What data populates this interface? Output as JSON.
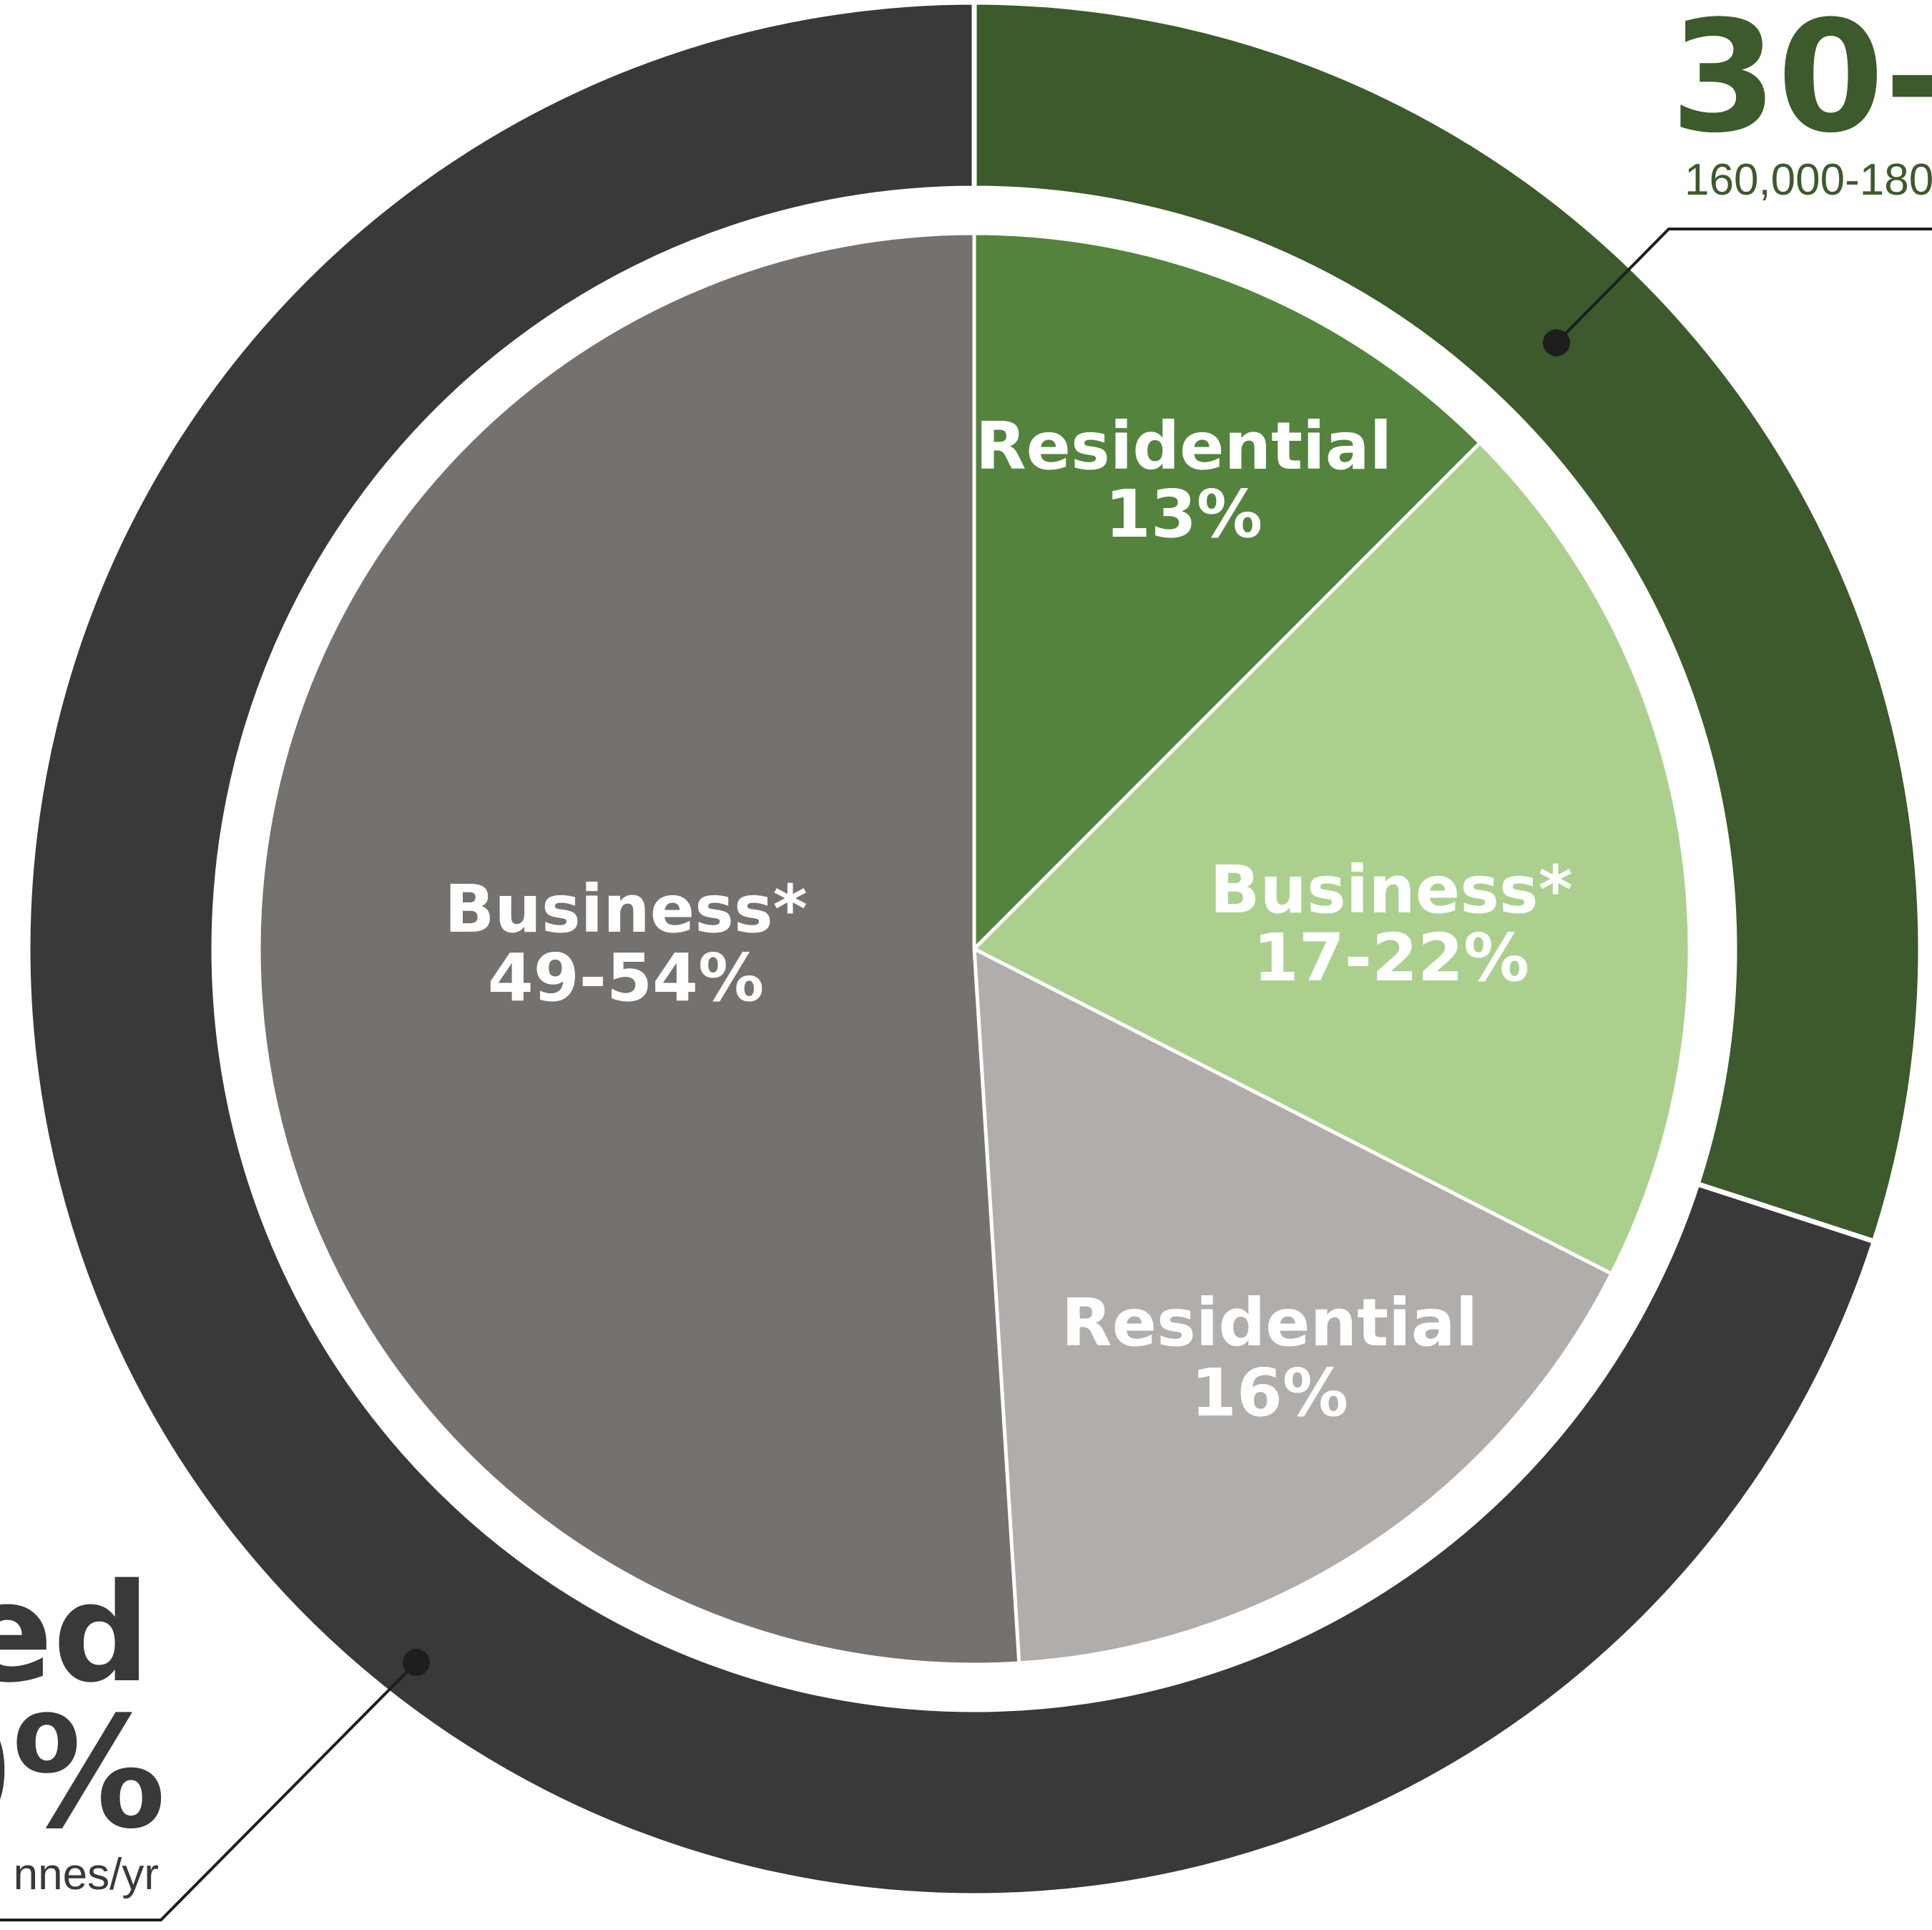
{
  "chart_data": {
    "type": "pie",
    "outer_ring": [
      {
        "value_pct": 30,
        "color": "#3c5a2b",
        "callout": {
          "big": "30-",
          "sub": "160,000-180"
        }
      },
      {
        "value_pct": 70,
        "color": "#3a3839",
        "callout": {
          "big_line1": "ed",
          "big_line2": "0%",
          "sub": "nnes/yr"
        }
      }
    ],
    "slices": [
      {
        "label": "Residential",
        "value_text": "13%",
        "value_pct": 12.5,
        "color": "#54833d"
      },
      {
        "label": "Business*",
        "value_text": "17-22%",
        "value_pct": 20.0,
        "color": "#abd08e"
      },
      {
        "label": "Residential",
        "value_text": "16%",
        "value_pct": 16.5,
        "color": "#b0adab"
      },
      {
        "label": "Business*",
        "value_text": "49-54%",
        "value_pct": 51.0,
        "color": "#75716f"
      }
    ]
  }
}
